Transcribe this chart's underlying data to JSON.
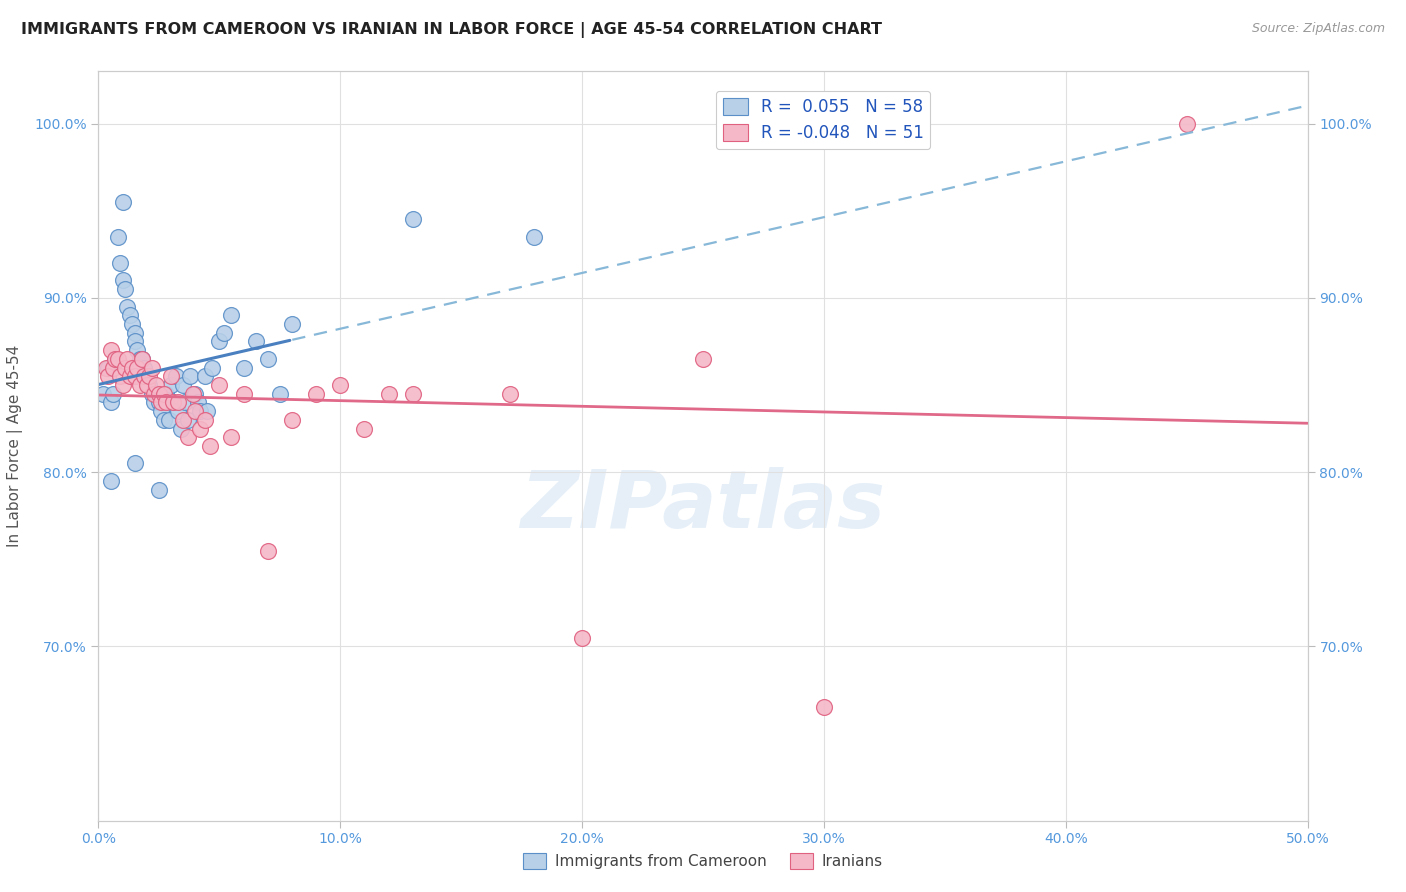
{
  "title": "IMMIGRANTS FROM CAMEROON VS IRANIAN IN LABOR FORCE | AGE 45-54 CORRELATION CHART",
  "source": "Source: ZipAtlas.com",
  "ylabel": "In Labor Force | Age 45-54",
  "x_tick_labels": [
    "0.0%",
    "10.0%",
    "20.0%",
    "30.0%",
    "40.0%",
    "50.0%"
  ],
  "x_tick_vals": [
    0.0,
    10.0,
    20.0,
    30.0,
    40.0,
    50.0
  ],
  "y_tick_labels": [
    "70.0%",
    "80.0%",
    "90.0%",
    "100.0%"
  ],
  "y_tick_vals": [
    70.0,
    80.0,
    90.0,
    100.0
  ],
  "xlim": [
    0.0,
    50.0
  ],
  "ylim": [
    60.0,
    103.0
  ],
  "legend_R_blue": "R =  0.055",
  "legend_N_blue": "N = 58",
  "legend_R_pink": "R = -0.048",
  "legend_N_pink": "N = 51",
  "blue_fill": "#b8d0e8",
  "pink_fill": "#f5b8c8",
  "blue_edge": "#5a8fc8",
  "pink_edge": "#e06080",
  "blue_line": "#4a80c0",
  "pink_line": "#e06888",
  "blue_dash": "#88b8d8",
  "source_color": "#999999",
  "label_color": "#5599dd",
  "ylabel_color": "#555555",
  "background_color": "#ffffff",
  "grid_color": "#e0e0e0",
  "title_color": "#222222",
  "watermark_color": "#c8ddf0",
  "solid_end_x": 8.0,
  "cameroon_x": [
    0.2,
    0.4,
    0.5,
    0.6,
    0.7,
    0.8,
    0.9,
    1.0,
    1.0,
    1.1,
    1.2,
    1.3,
    1.4,
    1.5,
    1.5,
    1.6,
    1.7,
    1.8,
    1.9,
    2.0,
    2.0,
    2.1,
    2.2,
    2.3,
    2.4,
    2.5,
    2.6,
    2.7,
    2.8,
    2.9,
    3.0,
    3.1,
    3.2,
    3.3,
    3.4,
    3.5,
    3.6,
    3.7,
    3.8,
    4.0,
    4.1,
    4.2,
    4.4,
    4.5,
    4.7,
    5.0,
    5.2,
    5.5,
    6.0,
    6.5,
    7.0,
    7.5,
    8.0,
    0.5,
    1.5,
    2.5,
    13.0,
    18.0
  ],
  "cameroon_y": [
    84.5,
    86.0,
    84.0,
    84.5,
    86.5,
    93.5,
    92.0,
    91.0,
    95.5,
    90.5,
    89.5,
    89.0,
    88.5,
    88.0,
    87.5,
    87.0,
    86.5,
    86.5,
    86.0,
    85.5,
    85.0,
    85.0,
    84.5,
    84.0,
    84.5,
    84.0,
    83.5,
    83.0,
    84.5,
    83.0,
    85.0,
    84.0,
    85.5,
    83.5,
    82.5,
    85.0,
    84.0,
    83.0,
    85.5,
    84.5,
    84.0,
    83.5,
    85.5,
    83.5,
    86.0,
    87.5,
    88.0,
    89.0,
    86.0,
    87.5,
    86.5,
    84.5,
    88.5,
    79.5,
    80.5,
    79.0,
    94.5,
    93.5
  ],
  "iranian_x": [
    0.3,
    0.4,
    0.5,
    0.6,
    0.7,
    0.8,
    0.9,
    1.0,
    1.1,
    1.2,
    1.3,
    1.4,
    1.5,
    1.6,
    1.7,
    1.8,
    1.9,
    2.0,
    2.1,
    2.2,
    2.3,
    2.4,
    2.5,
    2.6,
    2.7,
    2.8,
    3.0,
    3.1,
    3.3,
    3.5,
    3.7,
    3.9,
    4.0,
    4.2,
    4.4,
    4.6,
    5.0,
    5.5,
    6.0,
    7.0,
    8.0,
    9.0,
    10.0,
    11.0,
    12.0,
    13.0,
    17.0,
    20.0,
    25.0,
    30.0,
    45.0
  ],
  "iranian_y": [
    86.0,
    85.5,
    87.0,
    86.0,
    86.5,
    86.5,
    85.5,
    85.0,
    86.0,
    86.5,
    85.5,
    86.0,
    85.5,
    86.0,
    85.0,
    86.5,
    85.5,
    85.0,
    85.5,
    86.0,
    84.5,
    85.0,
    84.5,
    84.0,
    84.5,
    84.0,
    85.5,
    84.0,
    84.0,
    83.0,
    82.0,
    84.5,
    83.5,
    82.5,
    83.0,
    81.5,
    85.0,
    82.0,
    84.5,
    75.5,
    83.0,
    84.5,
    85.0,
    82.5,
    84.5,
    84.5,
    84.5,
    70.5,
    86.5,
    66.5,
    100.0
  ]
}
